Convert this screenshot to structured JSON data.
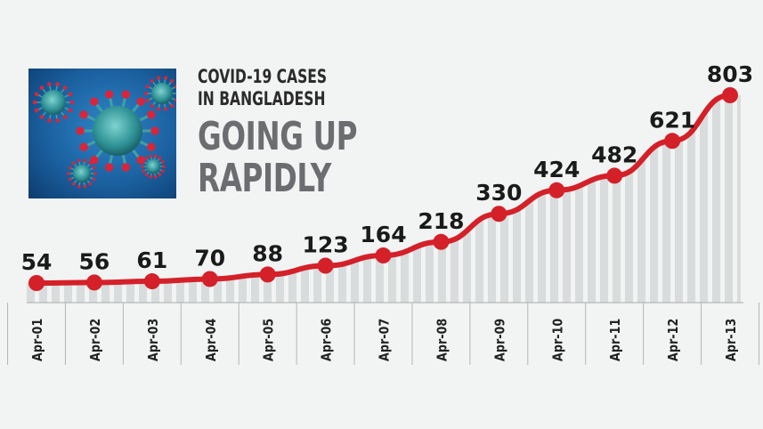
{
  "header": {
    "title_line1": "COVID-19 CASES",
    "title_line2": "IN BANGLADESH",
    "headline_line1": "GOING UP",
    "headline_line2": "RAPIDLY"
  },
  "image": {
    "icon": "coronavirus-illustration"
  },
  "colors": {
    "line": "#d42029",
    "bar": "#d9dcdc",
    "background": "#f2f3f3",
    "text": "#1a1a1a"
  },
  "chart_data": {
    "type": "line",
    "categories": [
      "Apr-01",
      "Apr-02",
      "Apr-03",
      "Apr-04",
      "Apr-05",
      "Apr-06",
      "Apr-07",
      "Apr-08",
      "Apr-09",
      "Apr-10",
      "Apr-11",
      "Apr-12",
      "Apr-13"
    ],
    "values": [
      54,
      56,
      61,
      70,
      88,
      123,
      164,
      218,
      330,
      424,
      482,
      621,
      803
    ],
    "data_labels": [
      "54",
      "56",
      "61",
      "70",
      "88",
      "123",
      "164",
      "218",
      "330",
      "424",
      "482",
      "621",
      "803"
    ],
    "area_fill": "vertical stripes",
    "grid": false,
    "legend": "none"
  }
}
